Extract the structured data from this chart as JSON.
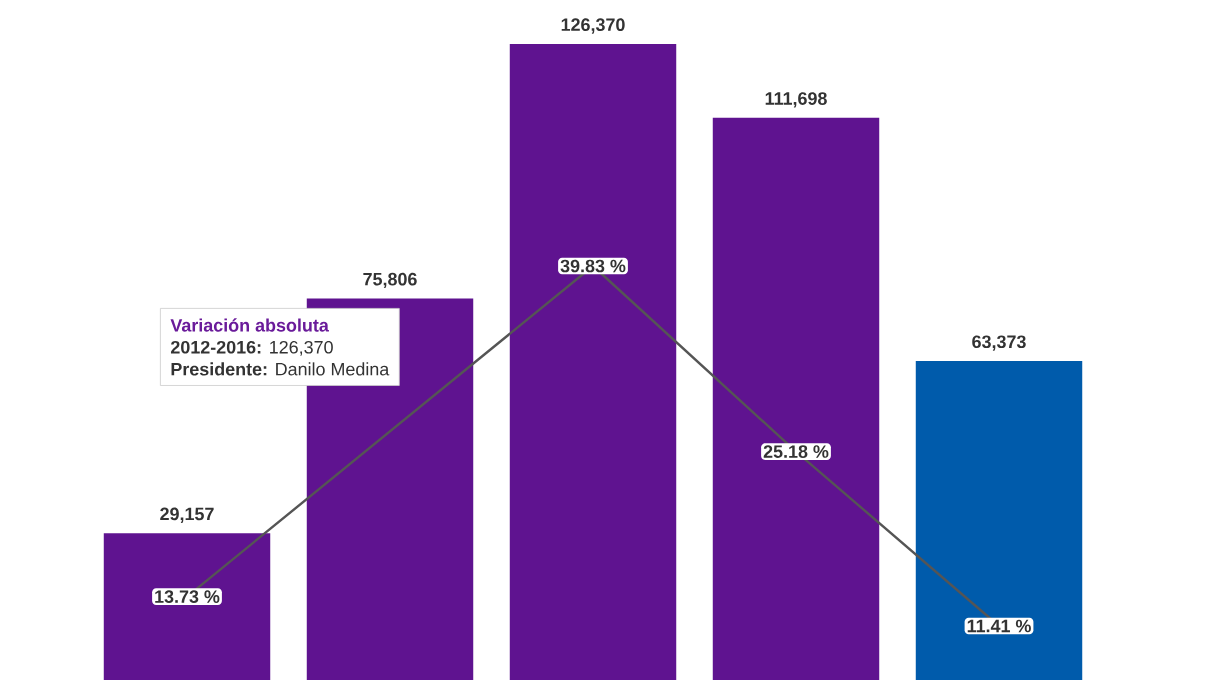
{
  "chart_data": [
    {
      "type": "bar",
      "categories": [
        null,
        null,
        null,
        null,
        null
      ],
      "annotations": [
        "Variación absoluta",
        "**2012-2016:** 126,370",
        "**Presidente:** Danilo Medina"
      ],
      "series": [
        {
          "type": "bar",
          "colors": [
            "#5f1390",
            "#5f1390",
            "#5f1390",
            "#5f1390",
            "#005bab"
          ],
          "values": [
            29157,
            75806,
            126370,
            111698,
            63373
          ],
          "value_labels": [
            "29,157",
            "75,806",
            "126,370",
            "111,698",
            "63,373"
          ]
        }
      ]
    },
    {
      "type": "line",
      "categories": [
        null,
        null,
        null,
        null,
        null
      ],
      "series": [
        {
          "color": "#555555",
          "values": [
            13.73,
            null,
            39.83,
            25.18,
            11.41
          ],
          "value_labels": [
            "13.73 %",
            null,
            "39.83 %",
            "25.18 %",
            "11.41 %"
          ]
        }
      ]
    }
  ]
}
